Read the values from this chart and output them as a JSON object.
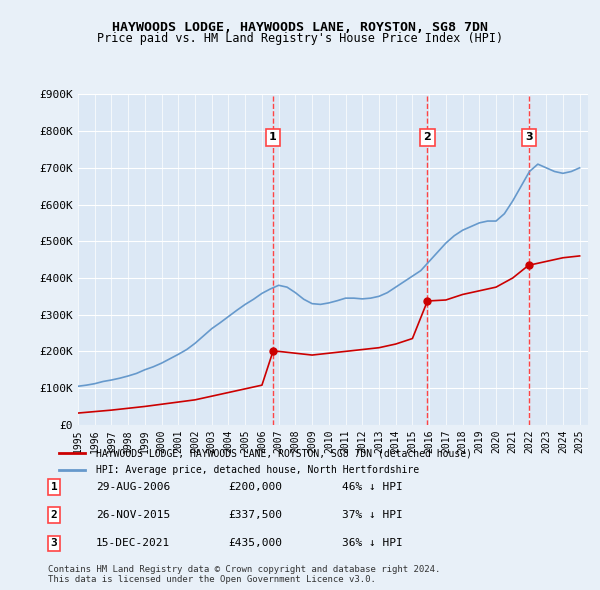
{
  "title": "HAYWOODS LODGE, HAYWOODS LANE, ROYSTON, SG8 7DN",
  "subtitle": "Price paid vs. HM Land Registry's House Price Index (HPI)",
  "background_color": "#e8f0f8",
  "plot_background_color": "#dce8f5",
  "ylim": [
    0,
    900000
  ],
  "yticks": [
    0,
    100000,
    200000,
    300000,
    400000,
    500000,
    600000,
    700000,
    800000,
    900000
  ],
  "ytick_labels": [
    "£0",
    "£100K",
    "£200K",
    "£300K",
    "£400K",
    "£500K",
    "£600K",
    "£700K",
    "£800K",
    "£900K"
  ],
  "xlim_start": 1995.0,
  "xlim_end": 2025.5,
  "xticks": [
    1995,
    1996,
    1997,
    1998,
    1999,
    2000,
    2001,
    2002,
    2003,
    2004,
    2005,
    2006,
    2007,
    2008,
    2009,
    2010,
    2011,
    2012,
    2013,
    2014,
    2015,
    2016,
    2017,
    2018,
    2019,
    2020,
    2021,
    2022,
    2023,
    2024,
    2025
  ],
  "legend_label_red": "HAYWOODS LODGE, HAYWOODS LANE, ROYSTON, SG8 7DN (detached house)",
  "legend_label_blue": "HPI: Average price, detached house, North Hertfordshire",
  "footer": "Contains HM Land Registry data © Crown copyright and database right 2024.\nThis data is licensed under the Open Government Licence v3.0.",
  "sale_dates": [
    2006.66,
    2015.9,
    2021.96
  ],
  "sale_prices": [
    200000,
    337500,
    435000
  ],
  "sale_labels": [
    "1",
    "2",
    "3"
  ],
  "sale_info": [
    [
      "1",
      "29-AUG-2006",
      "£200,000",
      "46% ↓ HPI"
    ],
    [
      "2",
      "26-NOV-2015",
      "£337,500",
      "37% ↓ HPI"
    ],
    [
      "3",
      "15-DEC-2021",
      "£435,000",
      "36% ↓ HPI"
    ]
  ],
  "red_line_color": "#cc0000",
  "blue_line_color": "#6699cc",
  "vline_color": "#ff4444",
  "hpi_x": [
    1995.0,
    1995.5,
    1996.0,
    1996.5,
    1997.0,
    1997.5,
    1998.0,
    1998.5,
    1999.0,
    1999.5,
    2000.0,
    2000.5,
    2001.0,
    2001.5,
    2002.0,
    2002.5,
    2003.0,
    2003.5,
    2004.0,
    2004.5,
    2005.0,
    2005.5,
    2006.0,
    2006.5,
    2007.0,
    2007.5,
    2008.0,
    2008.5,
    2009.0,
    2009.5,
    2010.0,
    2010.5,
    2011.0,
    2011.5,
    2012.0,
    2012.5,
    2013.0,
    2013.5,
    2014.0,
    2014.5,
    2015.0,
    2015.5,
    2016.0,
    2016.5,
    2017.0,
    2017.5,
    2018.0,
    2018.5,
    2019.0,
    2019.5,
    2020.0,
    2020.5,
    2021.0,
    2021.5,
    2022.0,
    2022.5,
    2023.0,
    2023.5,
    2024.0,
    2024.5,
    2025.0
  ],
  "hpi_y": [
    105000,
    108000,
    112000,
    118000,
    122000,
    127000,
    133000,
    140000,
    150000,
    158000,
    168000,
    180000,
    192000,
    205000,
    222000,
    242000,
    262000,
    278000,
    295000,
    312000,
    328000,
    342000,
    358000,
    370000,
    380000,
    375000,
    360000,
    342000,
    330000,
    328000,
    332000,
    338000,
    345000,
    345000,
    343000,
    345000,
    350000,
    360000,
    375000,
    390000,
    405000,
    420000,
    445000,
    470000,
    495000,
    515000,
    530000,
    540000,
    550000,
    555000,
    555000,
    575000,
    610000,
    650000,
    690000,
    710000,
    700000,
    690000,
    685000,
    690000,
    700000
  ],
  "red_x": [
    1995.0,
    1996.0,
    1997.0,
    1998.0,
    1999.0,
    2000.0,
    2001.0,
    2002.0,
    2003.0,
    2004.0,
    2005.0,
    2006.0,
    2006.66,
    2007.0,
    2008.0,
    2009.0,
    2010.0,
    2011.0,
    2012.0,
    2013.0,
    2014.0,
    2015.0,
    2015.9,
    2016.0,
    2017.0,
    2018.0,
    2019.0,
    2020.0,
    2021.0,
    2021.96,
    2022.0,
    2023.0,
    2024.0,
    2025.0
  ],
  "red_y": [
    32000,
    36000,
    40000,
    45000,
    50000,
    56000,
    62000,
    68000,
    78000,
    88000,
    98000,
    108000,
    200000,
    200000,
    195000,
    190000,
    195000,
    200000,
    205000,
    210000,
    220000,
    235000,
    337500,
    337500,
    340000,
    355000,
    365000,
    375000,
    400000,
    435000,
    435000,
    445000,
    455000,
    460000
  ]
}
